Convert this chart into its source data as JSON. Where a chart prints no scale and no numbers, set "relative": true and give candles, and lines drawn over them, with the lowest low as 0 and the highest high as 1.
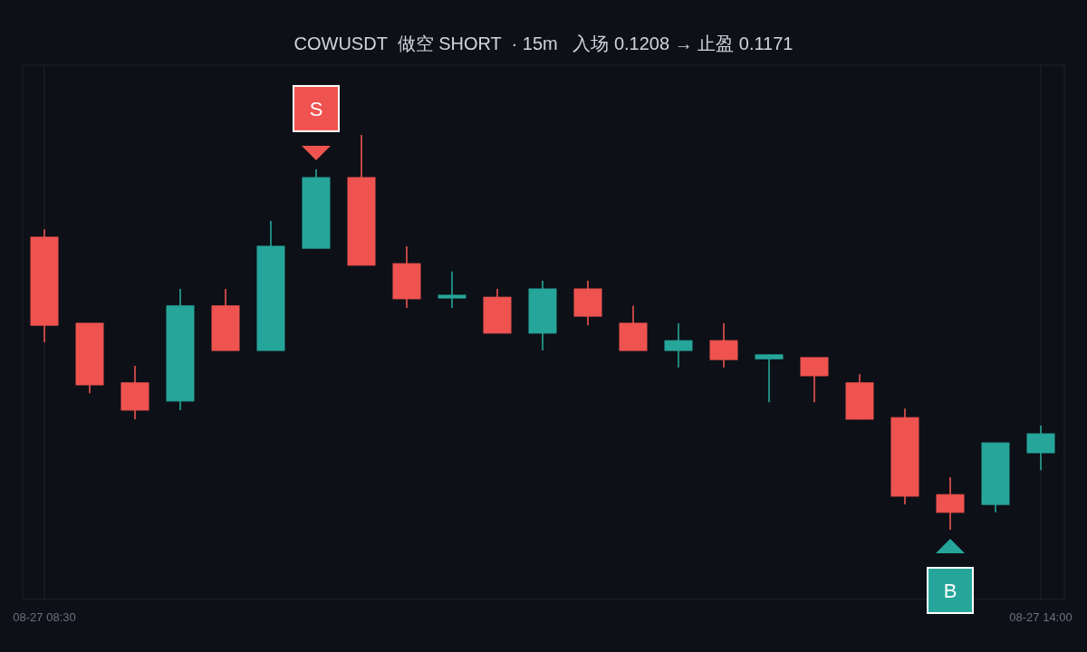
{
  "chart_data": {
    "type": "candlestick",
    "title": "COWUSDT  做空 SHORT  · 15m   入场 0.1208 → 止盈 0.1171",
    "relative": true,
    "categories": [
      "08-27 08:30",
      null,
      null,
      null,
      null,
      null,
      null,
      null,
      null,
      null,
      null,
      null,
      null,
      null,
      null,
      null,
      null,
      null,
      null,
      null,
      null,
      null,
      "08-27 14:00"
    ],
    "ohlc": [
      [
        0.741,
        0.761,
        0.475,
        0.518
      ],
      [
        0.523,
        0.523,
        0.346,
        0.367
      ],
      [
        0.372,
        0.415,
        0.28,
        0.303
      ],
      [
        0.326,
        0.61,
        0.303,
        0.567
      ],
      [
        0.567,
        0.61,
        0.454,
        0.454
      ],
      [
        0.454,
        0.782,
        0.454,
        0.718
      ],
      [
        0.713,
        0.913,
        0.713,
        0.892
      ],
      [
        0.892,
        1,
        0.67,
        0.67
      ],
      [
        0.674,
        0.718,
        0.562,
        0.585
      ],
      [
        0.587,
        0.654,
        0.562,
        0.594
      ],
      [
        0.589,
        0.61,
        0.498,
        0.498
      ],
      [
        0.498,
        0.631,
        0.454,
        0.61
      ],
      [
        0.61,
        0.631,
        0.518,
        0.541
      ],
      [
        0.523,
        0.567,
        0.454,
        0.454
      ],
      [
        0.454,
        0.523,
        0.411,
        0.479
      ],
      [
        0.479,
        0.523,
        0.411,
        0.431
      ],
      [
        0.433,
        0.443,
        0.323,
        0.443
      ],
      [
        0.436,
        0.436,
        0.323,
        0.39
      ],
      [
        0.372,
        0.394,
        0.28,
        0.28
      ],
      [
        0.284,
        0.307,
        0.064,
        0.085
      ],
      [
        0.089,
        0.133,
        0,
        0.044
      ],
      [
        0.064,
        0.22,
        0.044,
        0.22
      ],
      [
        0.195,
        0.264,
        0.151,
        0.243
      ]
    ],
    "colors": [
      "#ef5350",
      "#ef5350",
      "#ef5350",
      "#26a69a",
      "#ef5350",
      "#26a69a",
      "#26a69a",
      "#ef5350",
      "#ef5350",
      "#26a69a",
      "#ef5350",
      "#26a69a",
      "#ef5350",
      "#ef5350",
      "#26a69a",
      "#ef5350",
      "#26a69a",
      "#ef5350",
      "#ef5350",
      "#ef5350",
      "#ef5350",
      "#26a69a",
      "#26a69a"
    ],
    "grid": "x",
    "annotations": [
      {
        "text": "S",
        "y": 0.913
      },
      {
        "text": "B",
        "y": 0
      }
    ]
  }
}
